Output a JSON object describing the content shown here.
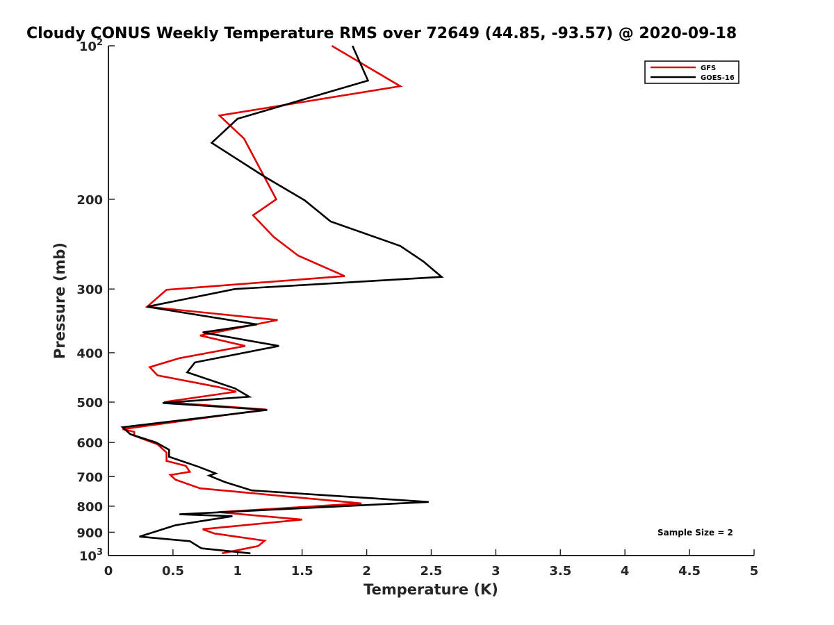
{
  "chart_data": {
    "type": "line",
    "title": "Cloudy CONUS Weekly Temperature RMS over 72649 (44.85, -93.57) @ 2020-09-18",
    "xlabel": "Temperature (K)",
    "ylabel": "Pressure (mb)",
    "xlim": [
      0,
      5
    ],
    "ylim": [
      100,
      1000
    ],
    "y_scale": "log",
    "y_reversed": true,
    "grid": false,
    "legend_position": "top-right",
    "x_ticks": [
      "0",
      "0.5",
      "1",
      "1.5",
      "2",
      "2.5",
      "3",
      "3.5",
      "4",
      "4.5",
      "5"
    ],
    "x_tick_values": [
      0,
      0.5,
      1,
      1.5,
      2,
      2.5,
      3,
      3.5,
      4,
      4.5,
      5
    ],
    "y_ticks": [
      {
        "value": 100,
        "base": "10",
        "exp": "2"
      },
      {
        "value": 200,
        "label": "200"
      },
      {
        "value": 300,
        "label": "300"
      },
      {
        "value": 400,
        "label": "400"
      },
      {
        "value": 500,
        "label": "500"
      },
      {
        "value": 600,
        "label": "600"
      },
      {
        "value": 700,
        "label": "700"
      },
      {
        "value": 800,
        "label": "800"
      },
      {
        "value": 900,
        "label": "900"
      },
      {
        "value": 1000,
        "base": "10",
        "exp": "3"
      }
    ],
    "annotation": "Sample Size = 2",
    "series": [
      {
        "name": "GFS",
        "color": "#e00000",
        "points": [
          [
            1.73,
            100
          ],
          [
            2.26,
            120
          ],
          [
            0.86,
            137
          ],
          [
            1.05,
            152
          ],
          [
            1.3,
            200
          ],
          [
            1.12,
            215
          ],
          [
            1.28,
            237
          ],
          [
            1.47,
            258
          ],
          [
            1.83,
            283
          ],
          [
            0.45,
            301
          ],
          [
            0.3,
            325
          ],
          [
            1.31,
            345
          ],
          [
            0.71,
            370
          ],
          [
            1.06,
            388
          ],
          [
            0.55,
            410
          ],
          [
            0.32,
            427
          ],
          [
            0.38,
            443
          ],
          [
            0.85,
            467
          ],
          [
            0.99,
            477
          ],
          [
            0.43,
            500
          ],
          [
            1.22,
            517
          ],
          [
            0.11,
            565
          ],
          [
            0.2,
            572
          ],
          [
            0.2,
            582
          ],
          [
            0.38,
            605
          ],
          [
            0.45,
            628
          ],
          [
            0.45,
            652
          ],
          [
            0.6,
            667
          ],
          [
            0.63,
            685
          ],
          [
            0.48,
            695
          ],
          [
            0.52,
            710
          ],
          [
            0.71,
            738
          ],
          [
            1.96,
            790
          ],
          [
            0.85,
            822
          ],
          [
            1.5,
            850
          ],
          [
            0.73,
            888
          ],
          [
            0.82,
            905
          ],
          [
            1.21,
            935
          ],
          [
            1.16,
            958
          ],
          [
            0.88,
            990
          ]
        ]
      },
      {
        "name": "GOES-16",
        "color": "#000000",
        "points": [
          [
            1.89,
            100
          ],
          [
            2.01,
            117
          ],
          [
            1.0,
            139
          ],
          [
            0.8,
            155
          ],
          [
            1.2,
            180
          ],
          [
            1.52,
            201
          ],
          [
            1.72,
            221
          ],
          [
            2.26,
            247
          ],
          [
            2.44,
            265
          ],
          [
            2.58,
            284
          ],
          [
            0.98,
            300
          ],
          [
            0.3,
            325
          ],
          [
            1.15,
            352
          ],
          [
            0.73,
            365
          ],
          [
            1.32,
            388
          ],
          [
            0.67,
            418
          ],
          [
            0.61,
            437
          ],
          [
            0.98,
            470
          ],
          [
            1.09,
            488
          ],
          [
            0.42,
            502
          ],
          [
            1.23,
            518
          ],
          [
            0.11,
            560
          ],
          [
            0.17,
            578
          ],
          [
            0.37,
            600
          ],
          [
            0.47,
            620
          ],
          [
            0.47,
            640
          ],
          [
            0.7,
            670
          ],
          [
            0.83,
            690
          ],
          [
            0.78,
            697
          ],
          [
            0.9,
            717
          ],
          [
            1.11,
            745
          ],
          [
            2.48,
            785
          ],
          [
            0.55,
            830
          ],
          [
            0.96,
            837
          ],
          [
            0.52,
            872
          ],
          [
            0.24,
            918
          ],
          [
            0.63,
            937
          ],
          [
            0.72,
            968
          ],
          [
            1.1,
            990
          ]
        ]
      }
    ]
  }
}
